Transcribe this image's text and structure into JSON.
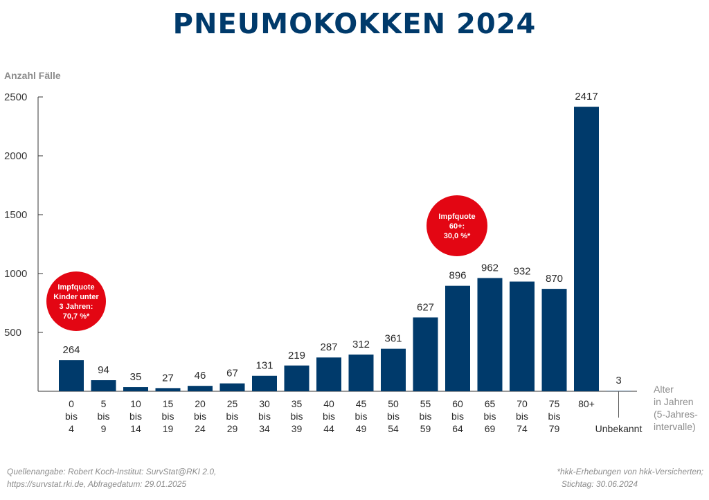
{
  "chart_data": {
    "type": "bar",
    "title": "PNEUMOKOKKEN 2024",
    "ylabel": "Anzahl Fälle",
    "xlabel": [
      "Alter",
      "in Jahren",
      "(5-Jahres-",
      "intervalle)"
    ],
    "ylim": [
      0,
      2500
    ],
    "yticks": [
      500,
      1000,
      1500,
      2000,
      2500
    ],
    "categories": [
      [
        "0",
        "bis",
        "4"
      ],
      [
        "5",
        "bis",
        "9"
      ],
      [
        "10",
        "bis",
        "14"
      ],
      [
        "15",
        "bis",
        "19"
      ],
      [
        "20",
        "bis",
        "24"
      ],
      [
        "25",
        "bis",
        "29"
      ],
      [
        "30",
        "bis",
        "34"
      ],
      [
        "35",
        "bis",
        "39"
      ],
      [
        "40",
        "bis",
        "44"
      ],
      [
        "45",
        "bis",
        "49"
      ],
      [
        "50",
        "bis",
        "54"
      ],
      [
        "55",
        "bis",
        "59"
      ],
      [
        "60",
        "bis",
        "64"
      ],
      [
        "65",
        "bis",
        "69"
      ],
      [
        "70",
        "bis",
        "74"
      ],
      [
        "75",
        "bis",
        "79"
      ],
      [
        "80+"
      ],
      [
        "Unbekannt"
      ]
    ],
    "values": [
      264,
      94,
      35,
      27,
      46,
      67,
      131,
      219,
      287,
      312,
      361,
      627,
      896,
      962,
      932,
      870,
      2417,
      3
    ],
    "bar_color": "#003a6b",
    "grid": false,
    "annotations": [
      {
        "lines": [
          "Impfquote",
          "Kinder unter",
          "3 Jahren:",
          "70,7 %*"
        ],
        "near_category": "0 bis 4",
        "color": "#e30613"
      },
      {
        "lines": [
          "Impfquote",
          "60+:",
          "30,0 %*"
        ],
        "near_category": "55 bis 59",
        "color": "#e30613"
      }
    ]
  },
  "footer": {
    "source_line1": "Quellenangabe: Robert Koch-Institut: SurvStat@RKI 2.0,",
    "source_line2": "https://survstat.rki.de, Abfragedatum: 29.01.2025",
    "note_line1": "*hkk-Erhebungen von hkk-Versicherten;",
    "note_line2": "Stichtag: 30.06.2024"
  }
}
